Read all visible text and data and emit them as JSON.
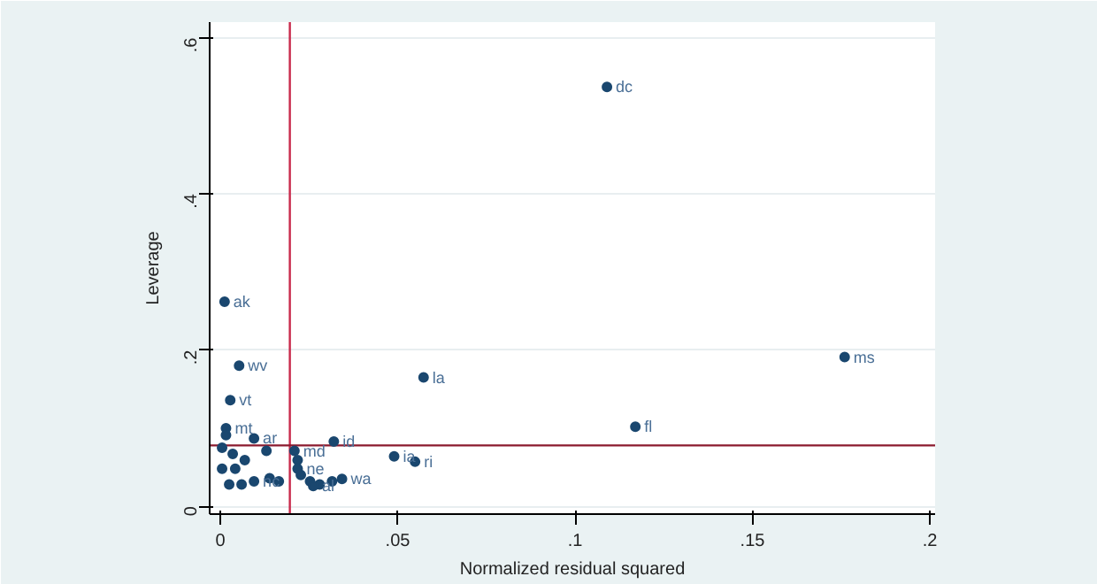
{
  "chart_data": {
    "type": "scatter",
    "xlabel": "Normalized residual squared",
    "ylabel": "Leverage",
    "x": [
      0.109,
      0.176,
      0.117,
      0.0573,
      0.0012,
      0.0053,
      0.0028,
      0.032,
      0.049,
      0.0549,
      0.0343,
      0.0209,
      0.0218,
      0.0016,
      0.0016,
      0.0095,
      0.0005,
      0.0005,
      0.0035,
      0.0042,
      0.0069,
      0.006,
      0.0025,
      0.0095,
      0.013,
      0.0139,
      0.0165,
      0.0218,
      0.0227,
      0.0253,
      0.028,
      0.0315,
      0.0262
    ],
    "series": [
      {
        "color": "#1a476f",
        "values": [
          0.537,
          0.191,
          0.102,
          0.165,
          0.262,
          0.18,
          0.136,
          0.083,
          0.064,
          0.057,
          0.035,
          0.071,
          0.059,
          0.1,
          0.091,
          0.087,
          0.075,
          0.048,
          0.067,
          0.048,
          0.059,
          0.028,
          0.028,
          0.032,
          0.071,
          0.036,
          0.032,
          0.048,
          0.04,
          0.032,
          0.028,
          0.032,
          0.026
        ]
      }
    ],
    "annotations": [
      {
        "text": "dc",
        "x": 0.109,
        "y": 0.537
      },
      {
        "text": "ms",
        "x": 0.176,
        "y": 0.191
      },
      {
        "text": "fl",
        "x": 0.117,
        "y": 0.102
      },
      {
        "text": "la",
        "x": 0.0573,
        "y": 0.165
      },
      {
        "text": "ak",
        "x": 0.0012,
        "y": 0.262
      },
      {
        "text": "wv",
        "x": 0.0053,
        "y": 0.18
      },
      {
        "text": "vt",
        "x": 0.0028,
        "y": 0.136
      },
      {
        "text": "id",
        "x": 0.032,
        "y": 0.083
      },
      {
        "text": "ia",
        "x": 0.049,
        "y": 0.064
      },
      {
        "text": "ri",
        "x": 0.0549,
        "y": 0.057
      },
      {
        "text": "wa",
        "x": 0.0343,
        "y": 0.035
      },
      {
        "text": "md",
        "x": 0.0209,
        "y": 0.071
      },
      {
        "text": "mt",
        "x": 0.0016,
        "y": 0.1
      },
      {
        "text": "ar",
        "x": 0.0095,
        "y": 0.087
      },
      {
        "text": "ne",
        "x": 0.0218,
        "y": 0.048
      },
      {
        "text": "nc",
        "x": 0.0095,
        "y": 0.032
      },
      {
        "text": "al",
        "x": 0.0262,
        "y": 0.026
      }
    ],
    "ref_lines": [
      {
        "axis": "x",
        "value": 0.0196,
        "color": "#c8284a"
      },
      {
        "axis": "y",
        "value": 0.078,
        "color": "#8b1a2e"
      }
    ],
    "xlim": [
      -0.003,
      0.2015
    ],
    "ylim": [
      -0.01,
      0.62
    ],
    "xticks": [
      0,
      {
        "value": 0.05,
        "label": ".05"
      },
      {
        "value": 0.1,
        "label": ".1"
      },
      {
        "value": 0.15,
        "label": ".15"
      },
      {
        "value": 0.2,
        "label": ".2"
      }
    ],
    "yticks": [
      0,
      {
        "value": 0.2,
        "label": ".2"
      },
      {
        "value": 0.4,
        "label": ".4"
      },
      {
        "value": 0.6,
        "label": ".6"
      }
    ],
    "grid": "y",
    "marker": "circle"
  }
}
